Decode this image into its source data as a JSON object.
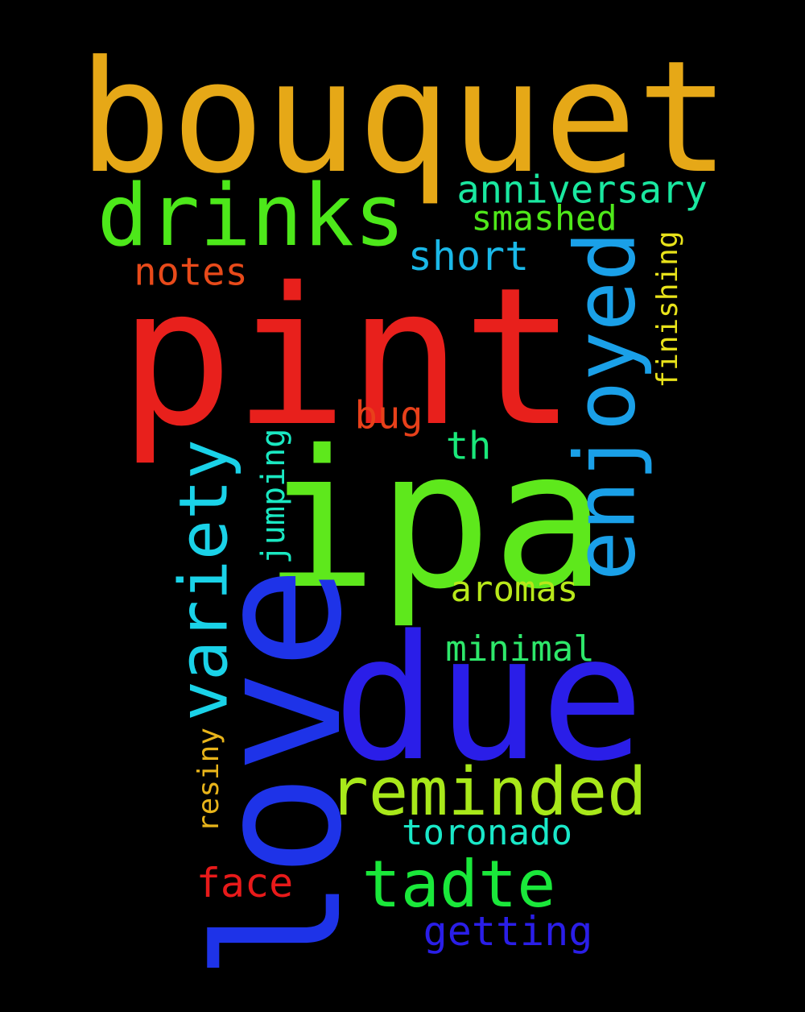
{
  "words": [
    {
      "text": "bouquet",
      "color": "#e6a817",
      "vertical": false
    },
    {
      "text": "pint",
      "color": "#e8201c",
      "vertical": false
    },
    {
      "text": "ipa",
      "color": "#5ee81c",
      "vertical": false
    },
    {
      "text": "love",
      "color": "#1e33e8",
      "vertical": true
    },
    {
      "text": "due",
      "color": "#2a1ee8",
      "vertical": false
    },
    {
      "text": "enjoyed",
      "color": "#1aa0e8",
      "vertical": true
    },
    {
      "text": "drinks",
      "color": "#4de81a",
      "vertical": false
    },
    {
      "text": "variety",
      "color": "#1ad2e8",
      "vertical": true
    },
    {
      "text": "reminded",
      "color": "#a8e81a",
      "vertical": false
    },
    {
      "text": "tadte",
      "color": "#1ae83a",
      "vertical": false
    },
    {
      "text": "anniversary",
      "color": "#1ae8a0",
      "vertical": false
    },
    {
      "text": "smashed",
      "color": "#4fe81a",
      "vertical": false
    },
    {
      "text": "short",
      "color": "#1ab8e8",
      "vertical": false
    },
    {
      "text": "notes",
      "color": "#e84a1a",
      "vertical": false
    },
    {
      "text": "finishing",
      "color": "#e8e21a",
      "vertical": true
    },
    {
      "text": "bug",
      "color": "#e8401a",
      "vertical": false
    },
    {
      "text": "th",
      "color": "#1ae87a",
      "vertical": false
    },
    {
      "text": "jumping",
      "color": "#1ae8c2",
      "vertical": true
    },
    {
      "text": "aromas",
      "color": "#b8e81a",
      "vertical": false
    },
    {
      "text": "minimal",
      "color": "#2ee86a",
      "vertical": false
    },
    {
      "text": "resiny",
      "color": "#e8b41a",
      "vertical": true
    },
    {
      "text": "toronado",
      "color": "#1ae8c8",
      "vertical": false
    },
    {
      "text": "face",
      "color": "#e81a1a",
      "vertical": false
    },
    {
      "text": "getting",
      "color": "#2a1ee8",
      "vertical": false
    }
  ]
}
